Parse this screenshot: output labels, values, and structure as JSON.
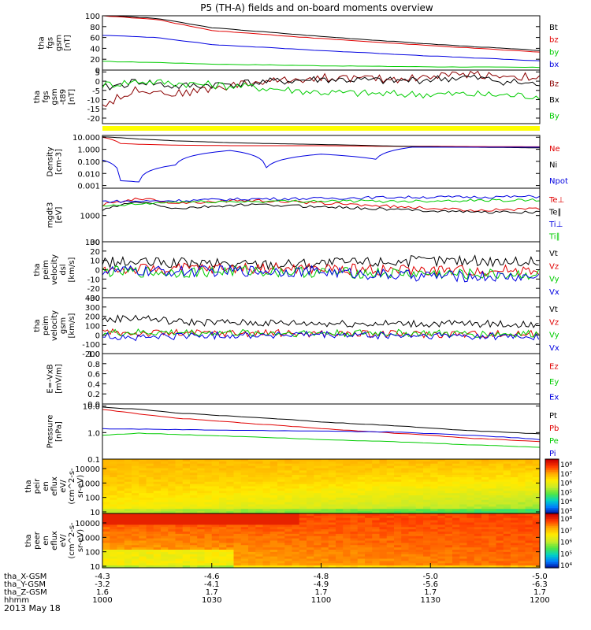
{
  "title": "P5 (TH-A) fields and on-board moments overview",
  "date": "2013 May 18",
  "time_axis": {
    "rows": [
      {
        "label": "tha_X-GSM",
        "values": [
          "-4.3",
          "-4.6",
          "-4.8",
          "-5.0",
          "-5.0"
        ]
      },
      {
        "label": "tha_Y-GSM",
        "values": [
          "-3.2",
          "-4.1",
          "-4.9",
          "-5.6",
          "-6.3"
        ]
      },
      {
        "label": "tha_Z-GSM",
        "values": [
          "1.6",
          "1.7",
          "1.7",
          "1.7",
          "1.7"
        ]
      },
      {
        "label": "hhmm",
        "values": [
          "1000",
          "1030",
          "1100",
          "1130",
          "1200"
        ]
      }
    ]
  },
  "colors": {
    "black": "#000000",
    "red": "#e00000",
    "green": "#00cc00",
    "blue": "#0000e0",
    "yellow": "#ffff00"
  },
  "chart_data": [
    {
      "type": "line",
      "ylabel_lines": [
        "tha",
        "fgs",
        "gsm",
        "[nT]"
      ],
      "yticks": [
        "100",
        "80",
        "60",
        "40",
        "20",
        "0"
      ],
      "ylim": [
        0,
        100
      ],
      "x": [
        0,
        15,
        30,
        60,
        90,
        120
      ],
      "series": [
        {
          "name": "Bt",
          "color": "#000000",
          "values": [
            101,
            95,
            78,
            62,
            48,
            36
          ]
        },
        {
          "name": "bz",
          "color": "#e00000",
          "values": [
            100,
            93,
            73,
            58,
            45,
            33
          ]
        },
        {
          "name": "by",
          "color": "#00cc00",
          "values": [
            16,
            14,
            11,
            8,
            6,
            5
          ]
        },
        {
          "name": "bx",
          "color": "#0000e0",
          "values": [
            64,
            60,
            47,
            36,
            26,
            17
          ]
        }
      ]
    },
    {
      "type": "line",
      "ylabel_lines": [
        "tha",
        "fgs",
        "gsm",
        "-t89",
        "[nT]"
      ],
      "yticks": [
        "5",
        "0",
        "-5",
        "-10",
        "-15",
        "-20"
      ],
      "ylim": [
        -23,
        6
      ],
      "x": [
        0,
        10,
        20,
        40,
        60,
        80,
        100,
        120
      ],
      "series": [
        {
          "name": "Bz",
          "color": "#8b0000",
          "values": [
            -13,
            -4,
            -7,
            -1,
            2,
            1,
            4,
            2
          ]
        },
        {
          "name": "Bx",
          "color": "#000000",
          "values": [
            -4,
            0,
            -3,
            -1,
            1,
            0,
            2,
            -2
          ]
        },
        {
          "name": "By",
          "color": "#00cc00",
          "values": [
            -2,
            0,
            -1,
            -3,
            -6,
            -7,
            -7,
            -8
          ]
        }
      ]
    },
    {
      "type": "line",
      "ylabel_lines": [
        "Density",
        "[cm-3]"
      ],
      "yticks": [
        "10.000",
        "1.000",
        "0.100",
        "0.010",
        "0.001"
      ],
      "log_scale": true,
      "ylim": [
        0.0006,
        14
      ],
      "x": [
        0,
        5,
        10,
        20,
        35,
        45,
        60,
        75,
        85,
        100,
        120
      ],
      "series": [
        {
          "name": "Ne",
          "color": "#e00000",
          "values": [
            10,
            3,
            2.6,
            2.2,
            2,
            2,
            2,
            1.8,
            1.8,
            1.7,
            1.6
          ]
        },
        {
          "name": "Ni",
          "color": "#000000",
          "values": [
            11,
            9,
            7,
            5,
            3.5,
            3,
            2.5,
            2,
            1.7,
            1.5,
            1.3
          ]
        },
        {
          "name": "Npot",
          "color": "#0000e0",
          "values": [
            0.13,
            0.0025,
            0.002,
            0.05,
            0.8,
            0.03,
            0.4,
            0.15,
            1.5,
            1.5,
            1.5
          ]
        }
      ]
    },
    {
      "type": "line",
      "ylabel_lines": [
        "mgdt3",
        "[eV]"
      ],
      "yticks": [
        "1000",
        "100"
      ],
      "log_scale": true,
      "ylim": [
        100,
        11000
      ],
      "x": [
        0,
        10,
        20,
        40,
        60,
        80,
        100,
        120
      ],
      "series": [
        {
          "name": "Te⊥",
          "color": "#e00000",
          "values": [
            2500,
            4500,
            3000,
            3800,
            3000,
            2200,
            1600,
            1800
          ]
        },
        {
          "name": "Te∥",
          "color": "#000000",
          "values": [
            1600,
            3300,
            1800,
            2600,
            2200,
            1700,
            1400,
            1300
          ]
        },
        {
          "name": "Ti⊥",
          "color": "#0000e0",
          "values": [
            3500,
            3500,
            3700,
            4300,
            4500,
            5000,
            5100,
            5300
          ]
        },
        {
          "name": "Ti∥",
          "color": "#00cc00",
          "values": [
            2200,
            2700,
            3300,
            3400,
            3600,
            3500,
            3800,
            3900
          ]
        }
      ]
    },
    {
      "type": "line",
      "ylabel_lines": [
        "tha",
        "peim",
        "velocity",
        "dsl",
        "[km/s]"
      ],
      "yticks": [
        "30",
        "20",
        "10",
        "0",
        "-10",
        "-20",
        "-30"
      ],
      "ylim": [
        -30,
        30
      ],
      "x": [
        0,
        20,
        40,
        60,
        80,
        100,
        120
      ],
      "series": [
        {
          "name": "Vt",
          "color": "#000000",
          "values": [
            8,
            7,
            6,
            7,
            9,
            10,
            8
          ]
        },
        {
          "name": "Vz",
          "color": "#e00000",
          "values": [
            0,
            1,
            2,
            1,
            0,
            -1,
            0
          ]
        },
        {
          "name": "Vy",
          "color": "#00cc00",
          "values": [
            -2,
            -3,
            -1,
            -3,
            -4,
            -5,
            -5
          ]
        },
        {
          "name": "Vx",
          "color": "#0000e0",
          "values": [
            -1,
            -2,
            -1,
            -2,
            -6,
            -7,
            -8
          ]
        }
      ]
    },
    {
      "type": "line",
      "ylabel_lines": [
        "tha",
        "peim",
        "velocity",
        "gsm",
        "[km/s]"
      ],
      "yticks": [
        "400",
        "300",
        "200",
        "100",
        "0",
        "-100",
        "-200"
      ],
      "ylim": [
        -200,
        400
      ],
      "x": [
        0,
        10,
        20,
        40,
        60,
        80,
        100,
        120
      ],
      "series": [
        {
          "name": "Vt",
          "color": "#000000",
          "values": [
            160,
            190,
            140,
            130,
            125,
            120,
            120,
            110
          ]
        },
        {
          "name": "Vz",
          "color": "#e00000",
          "values": [
            30,
            20,
            20,
            20,
            15,
            10,
            10,
            10
          ]
        },
        {
          "name": "Vy",
          "color": "#00cc00",
          "values": [
            20,
            25,
            25,
            20,
            20,
            20,
            10,
            10
          ]
        },
        {
          "name": "Vx",
          "color": "#0000e0",
          "values": [
            -10,
            -30,
            -10,
            0,
            0,
            -10,
            -10,
            -20
          ]
        }
      ]
    },
    {
      "type": "line",
      "ylabel_lines": [
        "E=-VxB",
        "[mV/m]"
      ],
      "yticks": [
        "1.0",
        "0.8",
        "0.6",
        "0.4",
        "0.2",
        "0.0"
      ],
      "ylim": [
        0,
        1
      ],
      "series": [
        {
          "name": "Ez",
          "color": "#e00000",
          "values": []
        },
        {
          "name": "Ey",
          "color": "#00cc00",
          "values": []
        },
        {
          "name": "Ex",
          "color": "#0000e0",
          "values": []
        }
      ]
    },
    {
      "type": "line",
      "ylabel_lines": [
        "Pressure",
        "[nPa]"
      ],
      "yticks": [
        "10.0",
        "1.0",
        "0.1"
      ],
      "log_scale": true,
      "ylim": [
        0.1,
        12
      ],
      "x": [
        0,
        10,
        20,
        40,
        60,
        80,
        100,
        120
      ],
      "series": [
        {
          "name": "Pt",
          "color": "#000000",
          "values": [
            9,
            7.5,
            5.5,
            3.8,
            2.5,
            1.8,
            1.2,
            0.9
          ]
        },
        {
          "name": "Pb",
          "color": "#e00000",
          "values": [
            7.5,
            5,
            3.5,
            2.2,
            1.4,
            0.95,
            0.62,
            0.45
          ]
        },
        {
          "name": "Pe",
          "color": "#00cc00",
          "values": [
            0.8,
            0.95,
            0.85,
            0.7,
            0.55,
            0.45,
            0.35,
            0.28
          ]
        },
        {
          "name": "Pi",
          "color": "#0000e0",
          "values": [
            1.4,
            1.35,
            1.3,
            1.2,
            1.15,
            1.05,
            0.8,
            0.55
          ]
        }
      ]
    },
    {
      "type": "heatmap",
      "ylabel_lines": [
        "tha",
        "peir",
        "en",
        "eflux",
        "eV/",
        "(cm^2-s-",
        "sr-eV)"
      ],
      "yticks": [
        "10000",
        "1000",
        "100",
        "10"
      ],
      "colorbar_ticks": [
        "10⁸",
        "10⁷",
        "10⁶",
        "10⁵",
        "10⁴",
        "10³"
      ]
    },
    {
      "type": "heatmap",
      "ylabel_lines": [
        "tha",
        "peer",
        "en",
        "eflux",
        "eV/",
        "(cm^2-s-",
        "sr-eV)"
      ],
      "yticks": [
        "10000",
        "1000",
        "100",
        "10"
      ],
      "colorbar_ticks": [
        "10⁸",
        "10⁷",
        "10⁶",
        "10⁵",
        "10⁴"
      ]
    }
  ]
}
